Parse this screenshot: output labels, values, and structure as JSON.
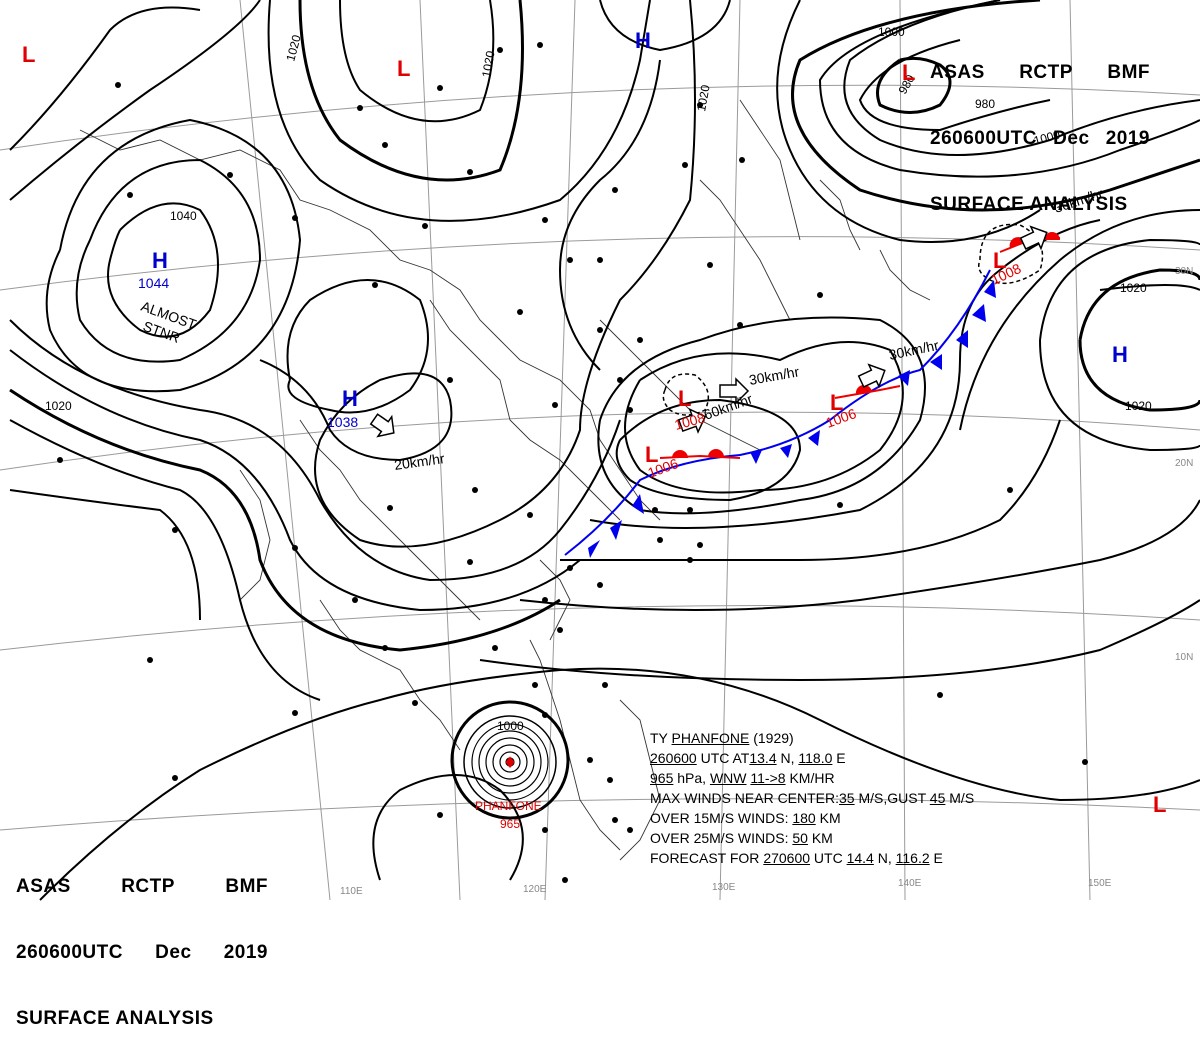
{
  "header_top": {
    "agency": "ASAS",
    "station": "RCTP",
    "office": "BMF",
    "datetime": "260600UTC",
    "month": "Dec",
    "year": "2019",
    "title": "SURFACE ANALYSIS"
  },
  "header_bottom": {
    "agency": "ASAS",
    "station": "RCTP",
    "office": "BMF",
    "datetime": "260600UTC",
    "month": "Dec",
    "year": "2019",
    "title": "SURFACE ANALYSIS"
  },
  "typhoon": {
    "name": "PHANFONE",
    "line1_prefix": "TY",
    "line1_name": "PHANFONE",
    "line1_num": "(1929)",
    "line2_time": "260600",
    "line2_mid": "UTC  AT",
    "line2_lat": "13.4",
    "line2_n": "N,",
    "line2_lon": "118.0",
    "line2_e": "E",
    "line3_p": "965",
    "line3_hpa": "hPa,",
    "line3_dir": "WNW",
    "line3_spd": "11->8",
    "line3_unit": "KM/HR",
    "line4_pre": "MAX WINDS NEAR CENTER:",
    "line4_w": "35",
    "line4_mid": "M/S,GUST",
    "line4_g": "45",
    "line4_end": "M/S",
    "line5_pre": "OVER 15M/S WINDS:",
    "line5_v": "180",
    "line5_end": "KM",
    "line6_pre": "OVER 25M/S WINDS:",
    "line6_v": "50",
    "line6_end": "KM",
    "line7_pre": "FORECAST FOR",
    "line7_time": "270600",
    "line7_mid": "UTC",
    "line7_lat": "14.4",
    "line7_n": "N,",
    "line7_lon": "116.2",
    "line7_e": "E",
    "label_pressure": "965"
  },
  "pressure_systems": [
    {
      "type": "L",
      "kind": "low"
    },
    {
      "type": "L",
      "kind": "low"
    },
    {
      "type": "H",
      "kind": "high"
    },
    {
      "type": "L",
      "kind": "low",
      "value": "980"
    },
    {
      "type": "H",
      "kind": "high",
      "value": "1044"
    },
    {
      "type": "H",
      "kind": "high",
      "value": "1038"
    },
    {
      "type": "L",
      "kind": "low",
      "value": "1006"
    },
    {
      "type": "L",
      "kind": "low",
      "value": "1006"
    },
    {
      "type": "L",
      "kind": "low",
      "value": "1008"
    },
    {
      "type": "L",
      "kind": "low",
      "value": "1008"
    },
    {
      "type": "H",
      "kind": "high"
    },
    {
      "type": "L",
      "kind": "low"
    }
  ],
  "motion_labels": [
    "20km/hr",
    "30km/hr",
    "60km/hr",
    "30km/hr",
    "30km/hr"
  ],
  "isobar_labels": [
    "1020",
    "1020",
    "1020",
    "1040",
    "1020",
    "1000",
    "980",
    "980",
    "1000",
    "1020",
    "1020",
    "1000"
  ],
  "system_notes": [
    "ALMOST",
    "STNR"
  ],
  "graticule_labels": [
    "110E",
    "120E",
    "130E",
    "140E",
    "150E",
    "30N",
    "20N",
    "10N"
  ],
  "colors": {
    "low": "#e00000",
    "high": "#0000cc",
    "front_cold": "#0000ee",
    "front_warm": "#ee0000",
    "isobar": "#000000",
    "graticule": "#888888",
    "coast": "#333333"
  }
}
